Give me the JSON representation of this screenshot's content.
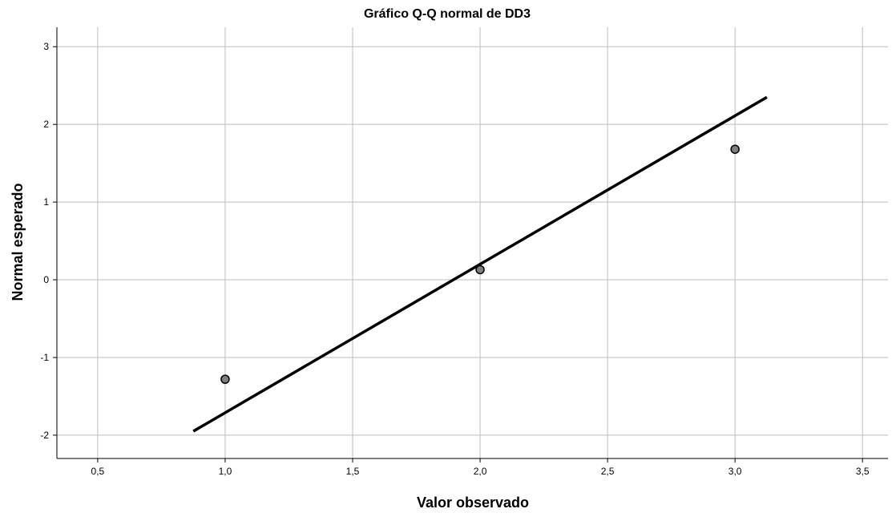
{
  "chart_data": {
    "type": "scatter",
    "title": "Gráfico Q-Q normal de DD3",
    "xlabel": "Valor observado",
    "ylabel": "Normal esperado",
    "xlim": [
      0.34,
      3.6
    ],
    "ylim": [
      -2.3,
      3.25
    ],
    "x_ticks": [
      0.5,
      1.0,
      1.5,
      2.0,
      2.5,
      3.0,
      3.5
    ],
    "x_tick_labels": [
      "0,5",
      "1,0",
      "1,5",
      "2,0",
      "2,5",
      "3,0",
      "3,5"
    ],
    "y_ticks": [
      -2,
      -1,
      0,
      1,
      2,
      3
    ],
    "y_tick_labels": [
      "-2",
      "-1",
      "0",
      "1",
      "2",
      "3"
    ],
    "grid": true,
    "series": [
      {
        "kind": "points",
        "x": [
          1.0,
          2.0,
          3.0
        ],
        "y": [
          -1.28,
          0.13,
          1.68
        ]
      },
      {
        "kind": "reference-line",
        "x": [
          0.875,
          3.125
        ],
        "y": [
          -1.95,
          2.35
        ]
      }
    ],
    "colors": {
      "point_fill": "#7f7f7f",
      "point_stroke": "#000000",
      "line": "#000000",
      "grid": "#bdbdbd",
      "axis": "#000000"
    }
  }
}
